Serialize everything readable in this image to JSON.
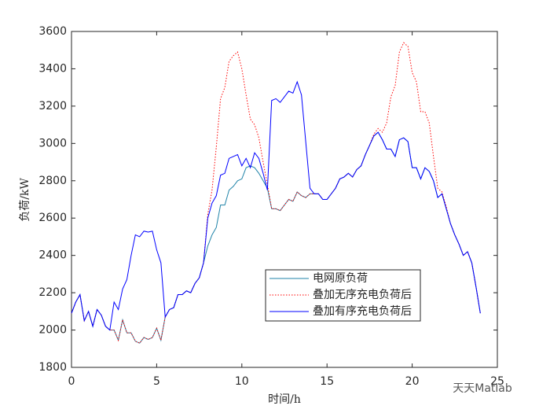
{
  "chart_data": {
    "type": "line",
    "xlabel": "时间/h",
    "ylabel": "负荷/kW",
    "watermark": "天天Matlab",
    "x": [
      0,
      0.25,
      0.5,
      0.75,
      1,
      1.25,
      1.5,
      1.75,
      2,
      2.25,
      2.5,
      2.75,
      3,
      3.25,
      3.5,
      3.75,
      4,
      4.25,
      4.5,
      4.75,
      5,
      5.25,
      5.5,
      5.75,
      6,
      6.25,
      6.5,
      6.75,
      7,
      7.25,
      7.5,
      7.75,
      8,
      8.25,
      8.5,
      8.75,
      9,
      9.25,
      9.5,
      9.75,
      10,
      10.25,
      10.5,
      10.75,
      11,
      11.25,
      11.5,
      11.75,
      12,
      12.25,
      12.5,
      12.75,
      13,
      13.25,
      13.5,
      13.75,
      14,
      14.25,
      14.5,
      14.75,
      15,
      15.25,
      15.5,
      15.75,
      16,
      16.25,
      16.5,
      16.75,
      17,
      17.25,
      17.5,
      17.75,
      18,
      18.25,
      18.5,
      18.75,
      19,
      19.25,
      19.5,
      19.75,
      20,
      20.25,
      20.5,
      20.75,
      21,
      21.25,
      21.5,
      21.75,
      22,
      22.25,
      22.5,
      22.75,
      23,
      23.25,
      23.5,
      23.75,
      24
    ],
    "series": [
      {
        "name": "电网原负荷",
        "color": "#1f83a8",
        "dash": "solid",
        "values": [
          2090,
          2150,
          2190,
          2050,
          2100,
          2020,
          2110,
          2080,
          2020,
          2000,
          2000,
          1945,
          2055,
          1985,
          1985,
          1940,
          1930,
          1960,
          1950,
          1960,
          2010,
          1945,
          2070,
          2110,
          2120,
          2190,
          2190,
          2210,
          2200,
          2250,
          2280,
          2360,
          2450,
          2510,
          2550,
          2670,
          2670,
          2750,
          2770,
          2800,
          2810,
          2870,
          2880,
          2870,
          2840,
          2800,
          2760,
          2650,
          2650,
          2640,
          2670,
          2700,
          2690,
          2740,
          2720,
          2710,
          2730,
          2730,
          2730,
          2700,
          2700,
          2730,
          2760,
          2810,
          2820,
          2840,
          2820,
          2860,
          2880,
          2940,
          2990,
          3040,
          3060,
          3020,
          2970,
          2970,
          2930,
          3020,
          3030,
          3010,
          2870,
          2870,
          2810,
          2870,
          2850,
          2800,
          2710,
          2730,
          2650,
          2570,
          2510,
          2460,
          2400,
          2420,
          2360,
          2230,
          2090
        ]
      },
      {
        "name": "叠加无序充电负荷后",
        "color": "#ff0000",
        "dash": "dotted",
        "values": [
          2090,
          2150,
          2190,
          2050,
          2100,
          2020,
          2110,
          2080,
          2020,
          2000,
          2000,
          1945,
          2055,
          1985,
          1985,
          1940,
          1930,
          1960,
          1950,
          1960,
          2010,
          1945,
          2070,
          2110,
          2120,
          2190,
          2190,
          2210,
          2200,
          2250,
          2280,
          2360,
          2620,
          2750,
          2980,
          3240,
          3300,
          3440,
          3470,
          3490,
          3400,
          3260,
          3130,
          3100,
          3030,
          2900,
          2780,
          2650,
          2650,
          2640,
          2670,
          2700,
          2690,
          2740,
          2720,
          2710,
          2730,
          2730,
          2730,
          2700,
          2700,
          2730,
          2760,
          2810,
          2820,
          2840,
          2820,
          2860,
          2880,
          2940,
          2990,
          3050,
          3080,
          3060,
          3110,
          3250,
          3310,
          3490,
          3540,
          3520,
          3380,
          3330,
          3170,
          3170,
          3110,
          2930,
          2760,
          2740,
          2660,
          2570,
          2510,
          2460,
          2400,
          2420,
          2360,
          2230,
          2090
        ]
      },
      {
        "name": "叠加有序充电负荷后",
        "color": "#0000ff",
        "dash": "solid",
        "values": [
          2090,
          2150,
          2190,
          2050,
          2100,
          2020,
          2110,
          2080,
          2020,
          2000,
          2150,
          2110,
          2220,
          2270,
          2400,
          2510,
          2500,
          2530,
          2525,
          2530,
          2430,
          2360,
          2070,
          2110,
          2120,
          2190,
          2190,
          2210,
          2200,
          2250,
          2280,
          2360,
          2600,
          2680,
          2720,
          2830,
          2840,
          2920,
          2930,
          2940,
          2880,
          2920,
          2870,
          2950,
          2920,
          2840,
          2750,
          3230,
          3240,
          3220,
          3250,
          3280,
          3270,
          3330,
          3260,
          3010,
          2760,
          2730,
          2730,
          2700,
          2700,
          2730,
          2760,
          2810,
          2820,
          2840,
          2820,
          2860,
          2880,
          2940,
          2990,
          3040,
          3060,
          3020,
          2970,
          2970,
          2930,
          3020,
          3030,
          3010,
          2870,
          2870,
          2810,
          2870,
          2850,
          2800,
          2710,
          2730,
          2650,
          2570,
          2510,
          2460,
          2400,
          2420,
          2360,
          2230,
          2090
        ]
      }
    ],
    "xlim": [
      0,
      25
    ],
    "xticks": [
      0,
      5,
      10,
      15,
      20,
      25
    ],
    "ylim": [
      1800,
      3600
    ],
    "yticks": [
      1800,
      2000,
      2200,
      2400,
      2600,
      2800,
      3000,
      3200,
      3400,
      3600
    ],
    "grid": false,
    "legend": "lower-center"
  }
}
